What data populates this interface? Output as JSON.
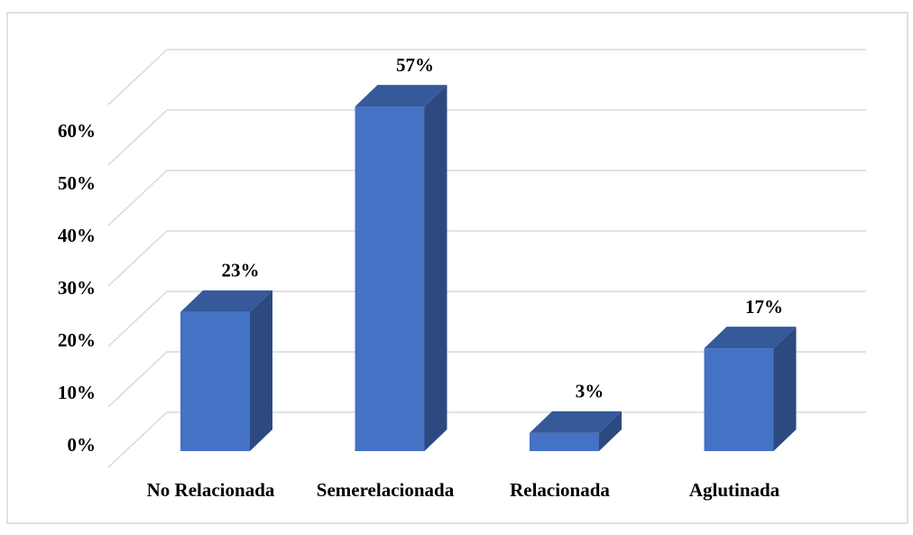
{
  "chart_data": {
    "type": "bar3d",
    "categories": [
      "No Relacionada",
      "Semerelacionada",
      "Relacionada",
      "Aglutinada"
    ],
    "values": [
      23,
      57,
      3,
      17
    ],
    "value_labels": [
      "23%",
      "57%",
      "3%",
      "17%"
    ],
    "color": "#4472c4",
    "ylim": [
      0,
      60
    ],
    "yticks": [
      {
        "value": 0,
        "label": "0%"
      },
      {
        "value": 10,
        "label": "10%"
      },
      {
        "value": 20,
        "label": "20%"
      },
      {
        "value": 30,
        "label": "30%"
      },
      {
        "value": 40,
        "label": "40%"
      },
      {
        "value": 50,
        "label": "50%"
      },
      {
        "value": 60,
        "label": "60%"
      }
    ],
    "grid": true
  }
}
